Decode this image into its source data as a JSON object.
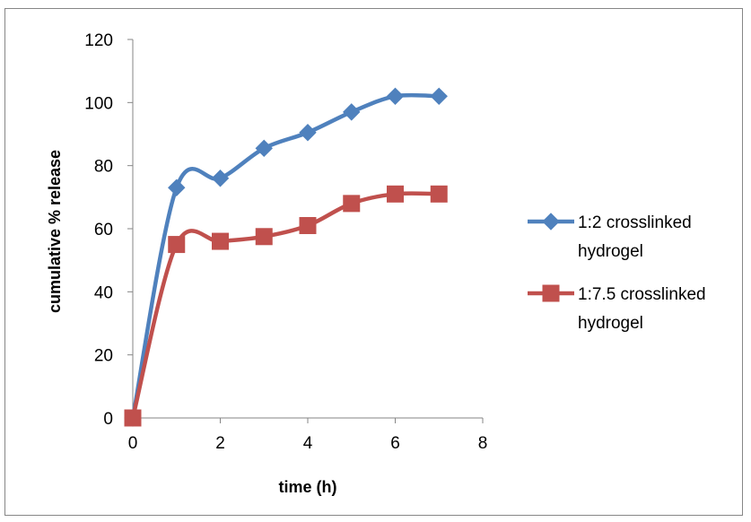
{
  "chart_data": {
    "type": "line",
    "title": "",
    "xlabel": "time (h)",
    "ylabel": "cumulative % release",
    "xlim": [
      0,
      8
    ],
    "ylim": [
      0,
      120
    ],
    "xticks": [
      0,
      2,
      4,
      6,
      8
    ],
    "yticks": [
      0,
      20,
      40,
      60,
      80,
      100,
      120
    ],
    "grid": false,
    "legend_position": "right",
    "smooth": true,
    "series": [
      {
        "name": "1:2 crosslinked hydrogel",
        "legend_lines": [
          "1:2 crosslinked",
          "hydrogel"
        ],
        "color": "#4F81BD",
        "marker": "diamond",
        "x": [
          0,
          1,
          2,
          3,
          4,
          5,
          6,
          7
        ],
        "y": [
          0,
          73,
          76,
          85.5,
          90.5,
          97,
          102,
          102
        ]
      },
      {
        "name": "1:7.5 crosslinked hydrogel",
        "legend_lines": [
          "1:7.5 crosslinked",
          "hydrogel"
        ],
        "color": "#C0504D",
        "marker": "square",
        "x": [
          0,
          1,
          2,
          3,
          4,
          5,
          6,
          7
        ],
        "y": [
          0,
          55,
          56,
          57.5,
          61,
          68,
          71,
          71
        ]
      }
    ]
  }
}
